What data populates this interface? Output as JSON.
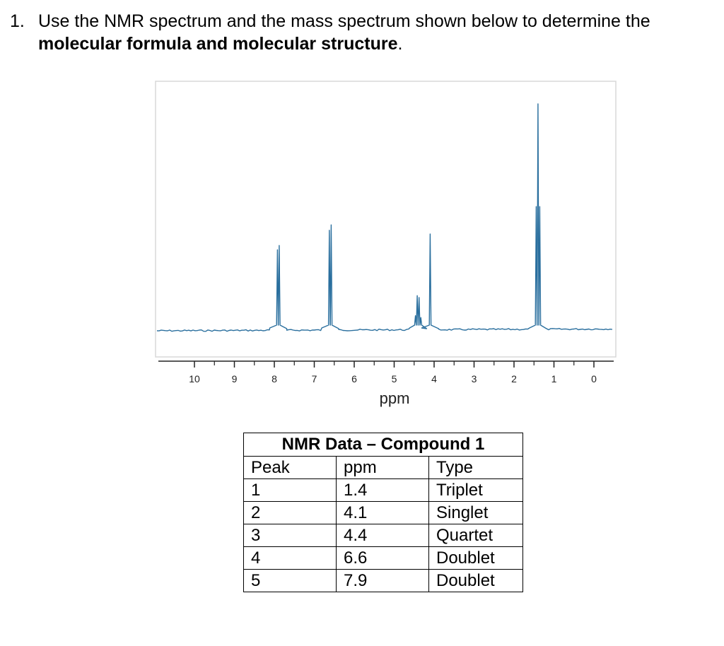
{
  "question": {
    "number": "1.",
    "line1": "Use the NMR spectrum and the mass spectrum shown below to determine the",
    "line2_bold": "molecular formula and molecular structure",
    "line2_tail": "."
  },
  "chart_data": {
    "type": "line",
    "xlabel": "ppm",
    "xlim": [
      10,
      0
    ],
    "x_reversed": true,
    "ticks": [
      "10",
      "9",
      "8",
      "7",
      "6",
      "5",
      "4",
      "3",
      "2",
      "1",
      "0"
    ],
    "tick_values": [
      10,
      9,
      8,
      7,
      6,
      5,
      4,
      3,
      2,
      1,
      0
    ],
    "ylim": [
      0,
      1
    ],
    "line_color": "#2a6f9e",
    "peaks": [
      {
        "ppm": 7.9,
        "multiplicity": "doublet",
        "height": 0.38
      },
      {
        "ppm": 6.6,
        "multiplicity": "doublet",
        "height": 0.47
      },
      {
        "ppm": 4.1,
        "multiplicity": "singlet",
        "height": 0.43
      },
      {
        "ppm": 4.4,
        "multiplicity": "quartet",
        "height": 0.16
      },
      {
        "ppm": 1.4,
        "multiplicity": "triplet",
        "height": 1.0
      }
    ]
  },
  "table": {
    "title": "NMR Data – Compound 1",
    "headers": [
      "Peak",
      "ppm",
      "Type"
    ],
    "rows": [
      [
        "1",
        "1.4",
        "Triplet"
      ],
      [
        "2",
        "4.1",
        "Singlet"
      ],
      [
        "3",
        "4.4",
        "Quartet"
      ],
      [
        "4",
        "6.6",
        "Doublet"
      ],
      [
        "5",
        "7.9",
        "Doublet"
      ]
    ]
  }
}
